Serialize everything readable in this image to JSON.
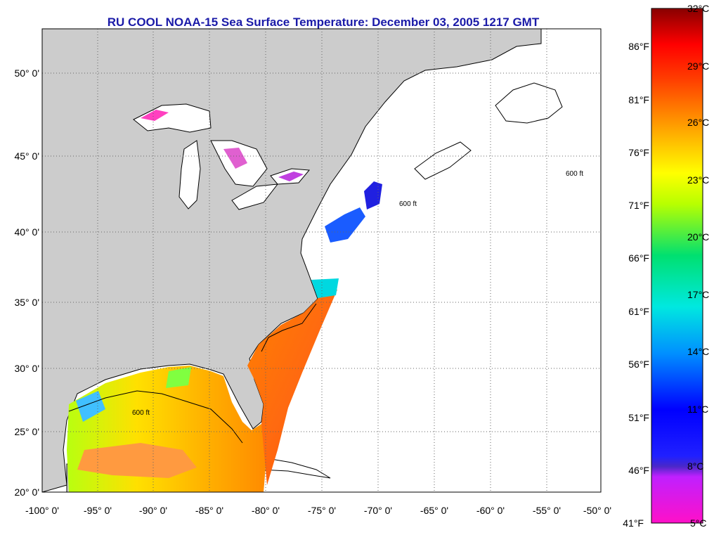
{
  "title": "RU COOL  NOAA-15  Sea Surface Temperature:  December 03, 2005 1217 GMT",
  "map": {
    "lat_ticks": [
      "50° 0'",
      "45° 0'",
      "40° 0'",
      "35° 0'",
      "30° 0'",
      "25° 0'",
      "20° 0'"
    ],
    "lon_ticks": [
      "-100° 0'",
      "-95° 0'",
      "-90° 0'",
      "-85° 0'",
      "-80° 0'",
      "-75° 0'",
      "-70° 0'",
      "-65° 0'",
      "-60° 0'",
      "-55° 0'",
      "-50° 0'"
    ],
    "contour_label": "600 ft",
    "colors": {
      "land": "#cccccc",
      "ocean_nodata": "#ffffff",
      "title": "#1a1aa8"
    }
  },
  "colorbar": {
    "fahrenheit": [
      "86°F",
      "81°F",
      "76°F",
      "71°F",
      "66°F",
      "61°F",
      "56°F",
      "51°F",
      "46°F",
      "41°F"
    ],
    "celsius": [
      "32°C",
      "29°C",
      "26°C",
      "23°C",
      "20°C",
      "17°C",
      "14°C",
      "11°C",
      "8°C",
      "5°C"
    ],
    "gradient_colors": [
      "#ff10c8",
      "#6a2cff",
      "#0000ff",
      "#0090ff",
      "#00e0e8",
      "#00e070",
      "#b8ff00",
      "#ffff00",
      "#ffa000",
      "#ff4000",
      "#ff0000",
      "#880000"
    ]
  }
}
